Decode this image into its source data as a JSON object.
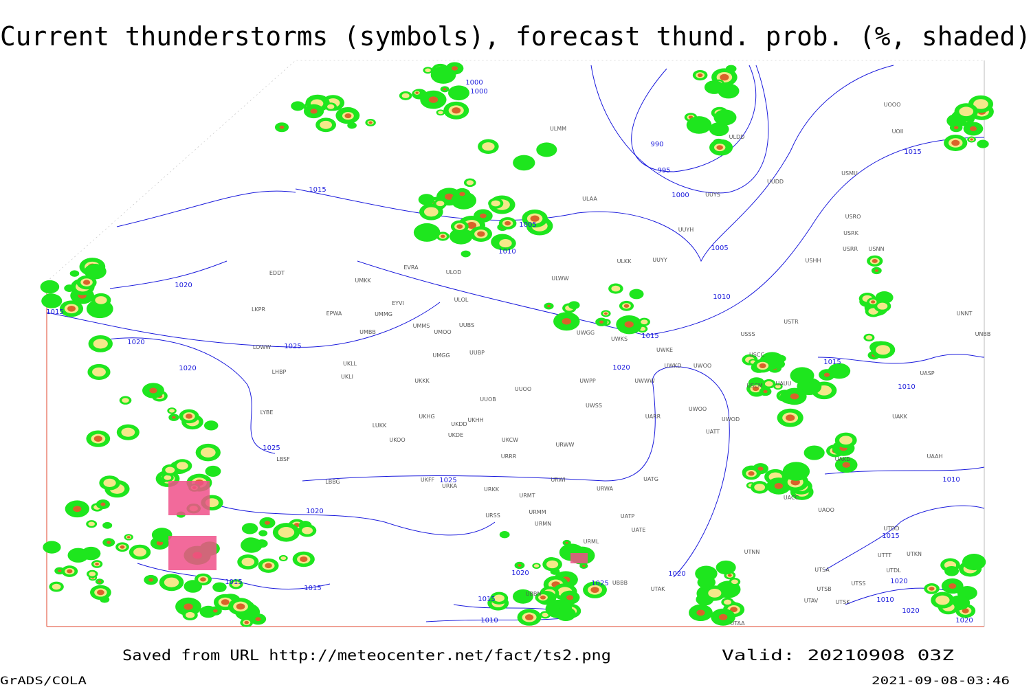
{
  "header": {
    "title": "Current thunderstorms (symbols), forecast thund. prob. (%, shaded)"
  },
  "footer": {
    "saved": "Saved from URL http://meteocenter.net/fact/ts2.png",
    "valid": "Valid: 20210908 03Z",
    "software": "GrADS/COLA",
    "timestamp": "2021-09-08-03:46"
  },
  "map": {
    "isobar_labels": [
      "1000",
      "1000",
      "990",
      "995",
      "1000",
      "1005",
      "1015",
      "1015",
      "1005",
      "1010",
      "1010",
      "1015",
      "1020",
      "1015",
      "1020",
      "1025",
      "1020",
      "1020",
      "1015",
      "1010",
      "1025",
      "1025",
      "1010",
      "1020",
      "1015",
      "1015",
      "1020",
      "1025",
      "1015",
      "1010",
      "1020",
      "1015",
      "1020",
      "1010",
      "1020",
      "1020"
    ],
    "station_labels": [
      "ULMM",
      "ULAA",
      "UUYS",
      "UUDD",
      "ULDD",
      "UOOO",
      "UOII",
      "USMU",
      "USRO",
      "USRK",
      "USRR",
      "USNN",
      "UUYH",
      "ULKK",
      "UUYY",
      "USHH",
      "ULWW",
      "ULOD",
      "EVRA",
      "UMKK",
      "EDDT",
      "EYVI",
      "ULOL",
      "EPWA",
      "UMMG",
      "UMMS",
      "UMOO",
      "UUBS",
      "UMBB",
      "UWGG",
      "UWKS",
      "USSS",
      "USTR",
      "UNNT",
      "UNBB",
      "LKPR",
      "UWKE",
      "USCC",
      "UUBP",
      "UMGG",
      "LOWW",
      "UWKD",
      "UWOO",
      "UKLL",
      "UKLI",
      "UWPP",
      "UWWW",
      "USCM",
      "UAUU",
      "UASP",
      "LHBP",
      "UKKK",
      "UUOO",
      "UUOB",
      "UWSS",
      "UAKK",
      "LYBE",
      "UKHH",
      "UKHG",
      "UKDD",
      "UWOO",
      "UARR",
      "UWOD",
      "LUKK",
      "UKDE",
      "URWW",
      "UATT",
      "UKCW",
      "UKOO",
      "UAAH",
      "LBSF",
      "URRR",
      "UAKD",
      "URWI",
      "UATG",
      "UKFF",
      "LBBG",
      "URKA",
      "URKK",
      "URWA",
      "UACC",
      "URMT",
      "URMM",
      "URSS",
      "UATP",
      "UAOO",
      "UATE",
      "URMN",
      "URML",
      "UTNN",
      "UTDD",
      "UTTT",
      "UTKN",
      "UTDL",
      "UTSA",
      "UTSS",
      "UTSB",
      "UTAK",
      "UBBB",
      "UBBN",
      "UTAV",
      "UTSK",
      "UTAA"
    ]
  }
}
